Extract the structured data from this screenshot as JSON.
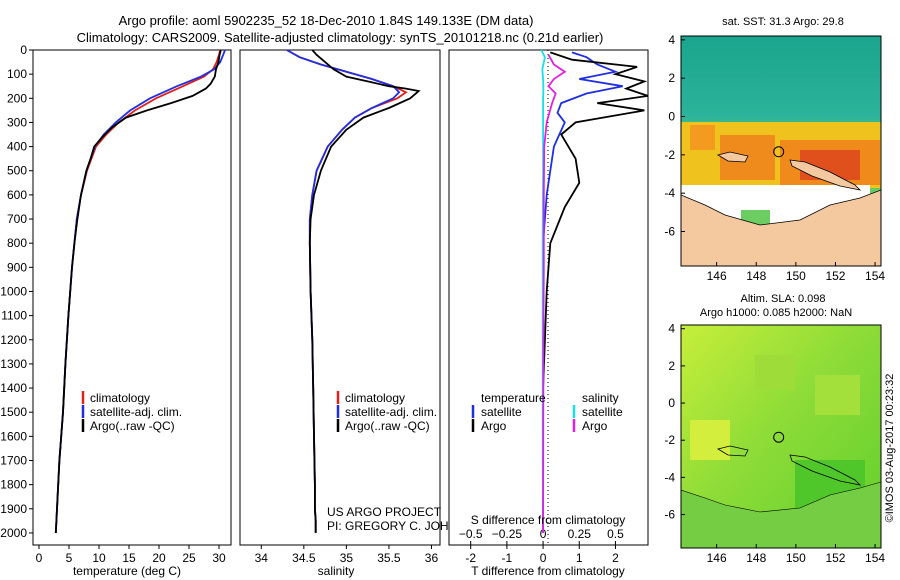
{
  "header": {
    "line1": "Argo profile: aoml 5902235_52 18-Dec-2010 1.84S 149.133E (DM data)",
    "line2": "Climatology: CARS2009. Satellite-adjusted climatology: synTS_20101218.nc (0.21d earlier)"
  },
  "colors": {
    "clim": "#e0201a",
    "sat": "#1f2fe0",
    "argo": "#000000",
    "sal_sat": "#19e0e8",
    "sal_argo": "#e020e0",
    "land": "#f5c9a0"
  },
  "credits": {
    "line1": "US ARGO PROJECT",
    "line2": "PI: GREGORY C. JOHNSON"
  },
  "watermark": "©IMOS 03-Aug-2017 00:23:32",
  "chart_data": [
    {
      "type": "line",
      "panel": "temperature",
      "xlabel": "temperature (deg C)",
      "xlim": [
        -1,
        32
      ],
      "ylim": [
        2050,
        0
      ],
      "xticks": [
        0,
        5,
        10,
        15,
        20,
        25,
        30
      ],
      "legend": [
        "climatology",
        "satellite-adj. clim.",
        "Argo(..raw -QC)"
      ],
      "series": [
        {
          "name": "climatology",
          "color": "#e0201a",
          "x": [
            30.2,
            30.0,
            29.6,
            29.0,
            27.5,
            24.0,
            19.5,
            16.0,
            13.3,
            11.2,
            9.5,
            8.0,
            7.0,
            6.3,
            5.9,
            5.5,
            4.9,
            4.4,
            4.0,
            3.7,
            3.4,
            3.2,
            3.0,
            2.9,
            2.8
          ],
          "y": [
            0,
            20,
            50,
            80,
            110,
            150,
            200,
            250,
            300,
            350,
            400,
            500,
            600,
            700,
            800,
            900,
            1100,
            1300,
            1500,
            1600,
            1700,
            1800,
            1900,
            1950,
            2000
          ]
        },
        {
          "name": "satellite-adj. clim.",
          "color": "#1f2fe0",
          "x": [
            31.0,
            30.7,
            30.2,
            29.2,
            27.0,
            23.0,
            18.5,
            15.2,
            12.8,
            10.8,
            9.3,
            7.9,
            7.0,
            6.3,
            5.9,
            5.5,
            4.9,
            4.4,
            4.0,
            3.7,
            3.4,
            3.2,
            3.0,
            2.9,
            2.8
          ],
          "y": [
            0,
            20,
            50,
            80,
            110,
            150,
            200,
            250,
            300,
            350,
            400,
            500,
            600,
            700,
            800,
            900,
            1100,
            1300,
            1500,
            1600,
            1700,
            1800,
            1900,
            1950,
            2000
          ]
        },
        {
          "name": "Argo(..raw -QC)",
          "color": "#000000",
          "x": [
            30.3,
            30.1,
            29.9,
            29.5,
            29.3,
            28.6,
            27.8,
            25.6,
            22.0,
            18.0,
            14.5,
            12.2,
            10.6,
            9.2,
            8.6,
            7.9,
            7.0,
            6.4,
            5.9,
            5.5,
            4.9,
            4.4,
            4.0,
            3.7,
            3.4,
            3.2,
            3.0,
            2.9,
            2.8
          ],
          "y": [
            0,
            20,
            50,
            80,
            110,
            140,
            160,
            190,
            220,
            250,
            280,
            320,
            360,
            400,
            450,
            500,
            600,
            700,
            800,
            900,
            1100,
            1300,
            1500,
            1600,
            1700,
            1800,
            1900,
            1950,
            2000
          ]
        }
      ]
    },
    {
      "type": "line",
      "panel": "salinity",
      "xlabel": "salinity",
      "xlim": [
        33.75,
        36.1
      ],
      "ylim": [
        2050,
        0
      ],
      "xticks": [
        34,
        34.5,
        35,
        35.5,
        36
      ],
      "legend": [
        "climatology",
        "satellite-adj. clim.",
        "Argo(..raw -QC)"
      ],
      "series": [
        {
          "name": "climatology",
          "color": "#e0201a",
          "x": [
            34.3,
            34.45,
            34.7,
            35.0,
            35.3,
            35.55,
            35.7,
            35.6,
            35.3,
            35.1,
            34.95,
            34.78,
            34.65,
            34.6,
            34.57,
            34.57,
            34.58,
            34.6,
            34.61,
            34.62,
            34.63,
            34.63,
            34.64,
            34.64
          ],
          "y": [
            0,
            30,
            60,
            90,
            120,
            150,
            175,
            200,
            240,
            280,
            330,
            400,
            500,
            600,
            700,
            800,
            1000,
            1200,
            1400,
            1600,
            1800,
            1900,
            1950,
            2000
          ]
        },
        {
          "name": "satellite-adj. clim.",
          "color": "#1f2fe0",
          "x": [
            34.3,
            34.45,
            34.7,
            35.0,
            35.3,
            35.55,
            35.62,
            35.55,
            35.3,
            35.1,
            34.95,
            34.78,
            34.65,
            34.6,
            34.57,
            34.57,
            34.58,
            34.6,
            34.61,
            34.62,
            34.63,
            34.63,
            34.64,
            34.64
          ],
          "y": [
            0,
            30,
            60,
            90,
            120,
            150,
            175,
            200,
            240,
            280,
            330,
            400,
            500,
            600,
            700,
            800,
            1000,
            1200,
            1400,
            1600,
            1800,
            1900,
            1950,
            2000
          ]
        },
        {
          "name": "Argo(..raw -QC)",
          "color": "#000000",
          "x": [
            34.6,
            34.65,
            34.75,
            34.85,
            35.0,
            35.25,
            35.5,
            35.7,
            35.85,
            35.75,
            35.5,
            35.2,
            35.0,
            34.82,
            34.7,
            34.62,
            34.58,
            34.57,
            34.58,
            34.6,
            34.61,
            34.62,
            34.63,
            34.63,
            34.64,
            34.64
          ],
          "y": [
            0,
            20,
            50,
            80,
            110,
            130,
            150,
            160,
            170,
            200,
            240,
            280,
            330,
            400,
            500,
            600,
            700,
            800,
            1000,
            1200,
            1400,
            1600,
            1800,
            1900,
            1950,
            2000
          ]
        }
      ]
    },
    {
      "type": "line",
      "panel": "difference",
      "xlabel": "T difference from climatology",
      "xlabel_top": "S difference from climatology",
      "xlim": [
        -2.6,
        2.9
      ],
      "ylim": [
        2050,
        0
      ],
      "xticks": [
        -2,
        -1,
        0,
        1,
        2
      ],
      "xticks_s": [
        -0.5,
        -0.25,
        0,
        0.25,
        0.5
      ],
      "xticklabels_s": [
        "−0.5",
        "−0.25",
        "0",
        "0.25",
        "0.5"
      ],
      "legend_temperature_title": "temperature",
      "legend_salinity_title": "salinity",
      "legend_temperature": [
        "satellite",
        "Argo"
      ],
      "legend_salinity": [
        "satellite",
        "Argo"
      ],
      "series": [
        {
          "name": "T satellite",
          "color": "#1f2fe0",
          "x": [
            0.8,
            1.2,
            1.5,
            2.0,
            1.0,
            2.2,
            1.2,
            0.5,
            0.4,
            0.6,
            0.3,
            0.2,
            0.1,
            0.0,
            0.0,
            0.0,
            0.0,
            0.0,
            0.0,
            0.0
          ],
          "y": [
            10,
            30,
            60,
            90,
            120,
            150,
            180,
            220,
            260,
            300,
            400,
            500,
            600,
            800,
            1000,
            1200,
            1400,
            1600,
            1800,
            2000
          ]
        },
        {
          "name": "T Argo",
          "color": "#000000",
          "x": [
            0.2,
            0.8,
            2.6,
            2.0,
            2.8,
            2.3,
            2.9,
            1.5,
            2.8,
            0.9,
            0.5,
            0.9,
            1.0,
            0.6,
            0.2,
            0.1,
            0.05,
            0.0,
            0.0,
            0.0
          ],
          "y": [
            10,
            40,
            70,
            100,
            130,
            160,
            190,
            220,
            250,
            300,
            350,
            450,
            550,
            650,
            800,
            1000,
            1200,
            1400,
            1700,
            2000
          ]
        },
        {
          "name": "S satellite",
          "color": "#19e0e8",
          "x": [
            -0.05,
            0.05,
            -0.02,
            0.0,
            0.01,
            0.0,
            0.0,
            0.0,
            -0.01,
            -0.01,
            -0.01,
            -0.01,
            0.0
          ],
          "y": [
            0,
            30,
            80,
            120,
            160,
            200,
            300,
            500,
            800,
            1100,
            1400,
            1700,
            2000
          ]
        },
        {
          "name": "S Argo",
          "color": "#e020e0",
          "x": [
            0.15,
            0.3,
            0.6,
            0.3,
            0.15,
            0.35,
            0.25,
            0.1,
            0.03,
            0.02,
            0.02,
            0.01,
            0.0
          ],
          "y": [
            20,
            60,
            90,
            120,
            150,
            180,
            220,
            300,
            400,
            600,
            900,
            1200,
            2000
          ]
        }
      ]
    },
    {
      "type": "heatmap",
      "panel": "sst-map",
      "title": "sat. SST: 31.3  Argo: 29.8",
      "xlim": [
        144.2,
        154.3
      ],
      "ylim": [
        -7.8,
        4.2
      ],
      "xticks": [
        146,
        148,
        150,
        152,
        154
      ],
      "yticks": [
        4,
        2,
        0,
        -2,
        -4,
        -6
      ],
      "argo_position": {
        "lon": 149.133,
        "lat": -1.84
      }
    },
    {
      "type": "heatmap",
      "panel": "sla-map",
      "title": "Altim. SLA: 0.098",
      "subtitle": "Argo h1000: 0.085 h2000: NaN",
      "xlim": [
        144.2,
        154.3
      ],
      "ylim": [
        -7.8,
        4.2
      ],
      "xticks": [
        146,
        148,
        150,
        152,
        154
      ],
      "yticks": [
        4,
        2,
        0,
        -2,
        -4,
        -6
      ],
      "argo_position": {
        "lon": 149.133,
        "lat": -1.84
      }
    }
  ],
  "depth_ticks": [
    0,
    100,
    200,
    300,
    400,
    500,
    600,
    700,
    800,
    900,
    1000,
    1100,
    1200,
    1300,
    1400,
    1500,
    1600,
    1700,
    1800,
    1900,
    2000
  ]
}
